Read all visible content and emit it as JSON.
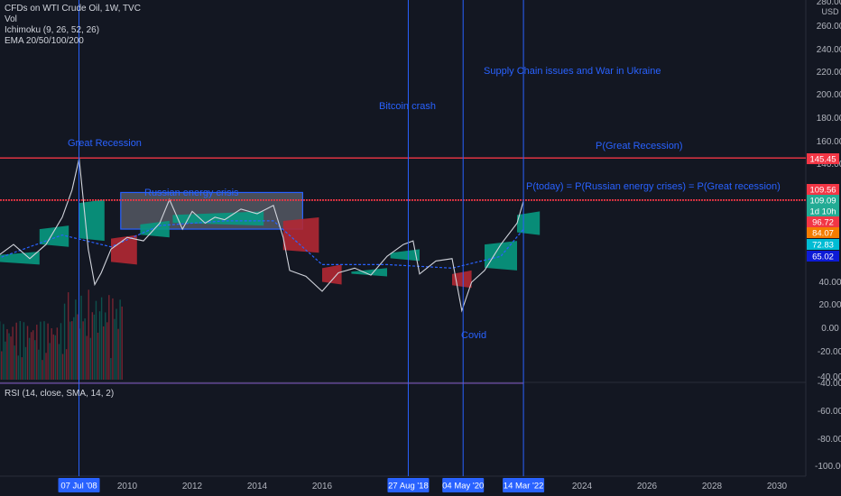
{
  "header": {
    "title": "CFDs on WTI Crude Oil, 1W, TVC",
    "vol": "Vol",
    "ichimoku": "Ichimoku (9, 26, 52, 26)",
    "ema": "EMA 20/50/100/200",
    "rsi": "RSI (14, close, SMA, 14, 2)"
  },
  "annotations": {
    "great_recession": "Great Recession",
    "russian_energy": "Russian energy crisis",
    "bitcoin_crash": "Bitcoin crash",
    "supply_chain": "Supply Chain issues and War in Ukraine",
    "p_great_recession": "P(Great Recession)",
    "p_today": "P(today) =  P(Russian energy crises) = P(Great recession)",
    "covid": "Covid"
  },
  "colors": {
    "background": "#131722",
    "accent_blue": "#2962ff",
    "red_line": "#f23645",
    "cloud_green": "#089981",
    "cloud_red": "#b22833"
  },
  "chart_data": {
    "type": "line",
    "price_axis": {
      "unit": "USD",
      "ticks": [
        "280.00",
        "260.00",
        "240.00",
        "220.00",
        "200.00",
        "180.00",
        "160.00",
        "140.00",
        "40.00",
        "20.00",
        "0.00",
        "-20.00",
        "-40.00"
      ],
      "range": [
        -40,
        280
      ]
    },
    "rsi_axis": {
      "ticks": [
        "-40.00",
        "-60.00",
        "-80.00",
        "-100.00"
      ]
    },
    "time_axis": {
      "ticks": [
        "2010",
        "2012",
        "2014",
        "2016",
        "2024",
        "2026",
        "2028",
        "2030"
      ]
    },
    "price_labels": [
      {
        "value": "145.45",
        "color": "#f23645"
      },
      {
        "value": "109.56",
        "color": "#f23645"
      },
      {
        "value": "109.09",
        "color": "#22ab94"
      },
      {
        "value": "1d 10h",
        "color": "#22ab94"
      },
      {
        "value": "96.72",
        "color": "#f23645"
      },
      {
        "value": "84.07",
        "color": "#f57c00"
      },
      {
        "value": "72.83",
        "color": "#00bcd4"
      },
      {
        "value": "65.02",
        "color": "#0d1bd6"
      }
    ],
    "vertical_markers": [
      {
        "label": "07 Jul '08",
        "date": "2008-07-07"
      },
      {
        "label": "27 Aug '18",
        "date": "2018-08-27"
      },
      {
        "label": "04 May '20",
        "date": "2020-05-04"
      },
      {
        "label": "14 Mar '22",
        "date": "2022-03-14"
      }
    ],
    "horizontal_levels": [
      145.45,
      109.56
    ],
    "box": {
      "x_start": 2009.8,
      "x_end": 2015.4,
      "y_low": 85,
      "y_high": 116
    },
    "price_series": {
      "name": "WTI",
      "x": [
        2006.0,
        2006.5,
        2007.0,
        2007.5,
        2008.0,
        2008.3,
        2008.52,
        2008.8,
        2009.0,
        2009.2,
        2009.5,
        2010.0,
        2010.5,
        2011.0,
        2011.3,
        2011.7,
        2012.0,
        2012.4,
        2012.7,
        2013.0,
        2013.5,
        2014.0,
        2014.5,
        2014.8,
        2015.0,
        2015.5,
        2016.0,
        2016.5,
        2017.0,
        2017.5,
        2018.0,
        2018.5,
        2018.8,
        2019.0,
        2019.5,
        2020.0,
        2020.3,
        2020.6,
        2021.0,
        2021.5,
        2022.0,
        2022.2
      ],
      "y": [
        62,
        72,
        60,
        72,
        95,
        118,
        145,
        68,
        38,
        48,
        68,
        78,
        75,
        90,
        110,
        85,
        100,
        90,
        95,
        93,
        102,
        98,
        105,
        78,
        50,
        45,
        32,
        48,
        52,
        46,
        62,
        72,
        75,
        47,
        58,
        60,
        15,
        40,
        50,
        72,
        90,
        109
      ]
    },
    "ema_series": {
      "x": [
        2006.0,
        2008.0,
        2009.5,
        2011.0,
        2013.0,
        2014.5,
        2016.0,
        2018.0,
        2020.0,
        2021.5,
        2022.2
      ],
      "y": [
        60,
        80,
        70,
        88,
        92,
        92,
        55,
        55,
        52,
        62,
        85
      ]
    },
    "rsi_series": {
      "x": [
        2006.0,
        2022.2
      ],
      "y": [
        -40,
        -40
      ]
    }
  }
}
